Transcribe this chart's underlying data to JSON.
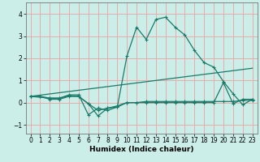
{
  "xlabel": "Humidex (Indice chaleur)",
  "xlim": [
    -0.5,
    23.5
  ],
  "ylim": [
    -1.4,
    4.5
  ],
  "yticks": [
    -1,
    0,
    1,
    2,
    3,
    4
  ],
  "xticks": [
    0,
    1,
    2,
    3,
    4,
    5,
    6,
    7,
    8,
    9,
    10,
    11,
    12,
    13,
    14,
    15,
    16,
    17,
    18,
    19,
    20,
    21,
    22,
    23
  ],
  "bg_color": "#cceee8",
  "grid_color": "#e8aaaa",
  "line_color": "#1a7a6a",
  "series1_x": [
    0,
    1,
    2,
    3,
    4,
    5,
    6,
    7,
    8,
    9,
    10,
    11,
    12,
    13,
    14,
    15,
    16,
    17,
    18,
    19,
    20,
    21,
    22,
    23
  ],
  "series1_y": [
    0.28,
    0.28,
    0.15,
    0.15,
    0.28,
    0.28,
    -0.05,
    -0.35,
    -0.25,
    -0.15,
    0.0,
    0.0,
    0.05,
    0.05,
    0.05,
    0.05,
    0.05,
    0.05,
    0.05,
    0.05,
    0.05,
    0.05,
    0.1,
    0.1
  ],
  "series2_x": [
    0,
    1,
    2,
    3,
    4,
    5,
    6,
    7,
    8,
    9,
    10,
    11,
    12,
    13,
    14,
    15,
    16,
    17,
    18,
    19,
    20,
    21,
    22,
    23
  ],
  "series2_y": [
    0.28,
    0.28,
    0.2,
    0.2,
    0.3,
    0.28,
    -0.05,
    -0.6,
    -0.25,
    -0.2,
    0.0,
    0.0,
    0.0,
    0.0,
    0.0,
    0.0,
    0.0,
    0.0,
    0.0,
    0.0,
    0.9,
    -0.05,
    0.15,
    0.15
  ],
  "series3_x": [
    0,
    2,
    3,
    4,
    5,
    6,
    7,
    8,
    9,
    10,
    11,
    12,
    13,
    14,
    15,
    16,
    17,
    18,
    19,
    20,
    21,
    22,
    23
  ],
  "series3_y": [
    0.28,
    0.2,
    0.2,
    0.35,
    0.35,
    -0.55,
    -0.25,
    -0.35,
    -0.2,
    2.1,
    3.4,
    2.85,
    3.75,
    3.85,
    3.4,
    3.05,
    2.35,
    1.8,
    1.6,
    0.95,
    0.4,
    -0.1,
    0.15
  ],
  "series4_x": [
    0,
    23
  ],
  "series4_y": [
    0.28,
    1.55
  ]
}
